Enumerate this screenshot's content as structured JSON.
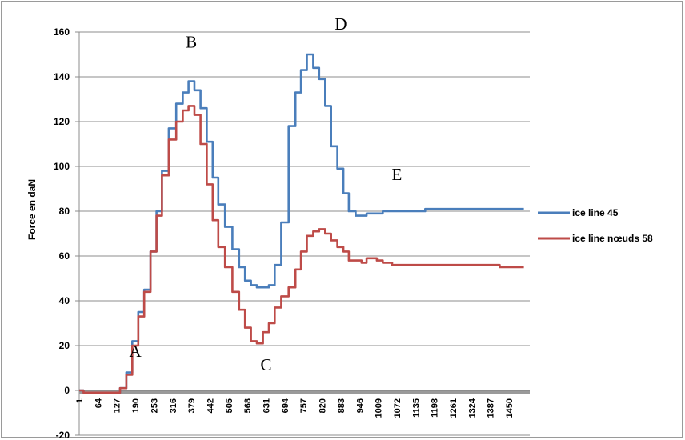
{
  "chart_data": {
    "type": "line",
    "title": "",
    "xlabel": "",
    "ylabel": "Force en daN",
    "ylim": [
      -20,
      160
    ],
    "y_ticks": [
      "160",
      "140",
      "120",
      "100",
      "80",
      "60",
      "40",
      "20",
      "0",
      "-20"
    ],
    "x_ticks": [
      "1",
      "64",
      "127",
      "190",
      "253",
      "316",
      "379",
      "442",
      "505",
      "568",
      "631",
      "694",
      "757",
      "820",
      "883",
      "946",
      "1009",
      "1072",
      "1135",
      "1198",
      "1261",
      "1324",
      "1387",
      "1450"
    ],
    "grid": "horizontal",
    "legend": "right",
    "annotations": [
      {
        "label": "A",
        "x": 190,
        "y": 15
      },
      {
        "label": "B",
        "x": 379,
        "y": 153
      },
      {
        "label": "C",
        "x": 631,
        "y": 9
      },
      {
        "label": "D",
        "x": 883,
        "y": 161
      },
      {
        "label": "E",
        "x": 1072,
        "y": 94
      }
    ],
    "series": [
      {
        "name": "ice line 45",
        "color": "#4a7ebb",
        "x": [
          1,
          30,
          64,
          100,
          127,
          150,
          170,
          190,
          210,
          230,
          253,
          270,
          290,
          316,
          340,
          360,
          379,
          400,
          420,
          442,
          460,
          480,
          505,
          530,
          550,
          570,
          590,
          610,
          631,
          650,
          670,
          694,
          720,
          740,
          757,
          780,
          800,
          820,
          840,
          860,
          883,
          900,
          920,
          946,
          960,
          980,
          1000,
          1009,
          1040,
          1072,
          1100,
          1135,
          1200,
          1261,
          1324,
          1387,
          1450,
          1500
        ],
        "y": [
          0,
          -1,
          -1,
          -1,
          -1,
          1,
          8,
          22,
          35,
          45,
          62,
          80,
          98,
          117,
          128,
          133,
          138,
          134,
          126,
          111,
          95,
          83,
          73,
          63,
          55,
          49,
          47,
          46,
          46,
          47,
          56,
          75,
          118,
          133,
          143,
          150,
          144,
          139,
          127,
          109,
          99,
          88,
          80,
          78,
          78,
          79,
          79,
          79,
          80,
          80,
          80,
          80,
          81,
          81,
          81,
          81,
          81,
          81
        ]
      },
      {
        "name": "ice line nœuds 58",
        "color": "#be4b48",
        "x": [
          1,
          30,
          64,
          100,
          127,
          150,
          170,
          190,
          210,
          230,
          253,
          270,
          290,
          316,
          340,
          360,
          379,
          400,
          420,
          442,
          460,
          480,
          505,
          530,
          550,
          570,
          590,
          610,
          631,
          650,
          670,
          694,
          720,
          740,
          757,
          780,
          800,
          820,
          840,
          860,
          883,
          900,
          920,
          946,
          960,
          980,
          1000,
          1009,
          1040,
          1072,
          1100,
          1135,
          1200,
          1261,
          1324,
          1387,
          1450,
          1500
        ],
        "y": [
          0,
          -1,
          -1,
          -1,
          -1,
          1,
          7,
          20,
          33,
          44,
          62,
          78,
          96,
          112,
          120,
          125,
          127,
          123,
          110,
          92,
          76,
          64,
          55,
          44,
          36,
          28,
          22,
          21,
          26,
          30,
          37,
          42,
          46,
          54,
          62,
          69,
          71,
          72,
          70,
          67,
          64,
          62,
          58,
          58,
          57,
          59,
          59,
          58,
          57,
          56,
          56,
          56,
          56,
          56,
          56,
          56,
          55,
          55
        ]
      }
    ]
  }
}
